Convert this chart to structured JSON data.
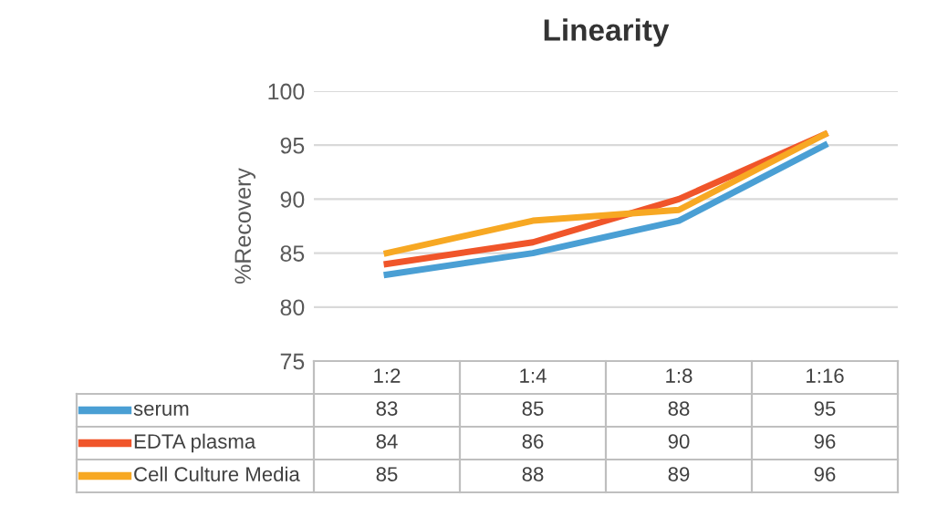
{
  "chart_data": {
    "type": "line",
    "title": "Linearity",
    "ylabel": "%Recovery",
    "categories": [
      "1:2",
      "1:4",
      "1:8",
      "1:16"
    ],
    "series": [
      {
        "name": "serum",
        "color": "#4a9fd4",
        "values": [
          83,
          85,
          88,
          95
        ]
      },
      {
        "name": "EDTA plasma",
        "color": "#f0552a",
        "values": [
          84,
          86,
          90,
          96
        ]
      },
      {
        "name": "Cell Culture Media",
        "color": "#f7a823",
        "values": [
          85,
          88,
          89,
          96
        ]
      }
    ],
    "ylim": [
      75,
      100
    ],
    "yticks": [
      75,
      80,
      85,
      90,
      95,
      100
    ],
    "grid": "y",
    "legend": "bottom",
    "data_labels": true,
    "marker": "none",
    "line_style": "solid"
  }
}
